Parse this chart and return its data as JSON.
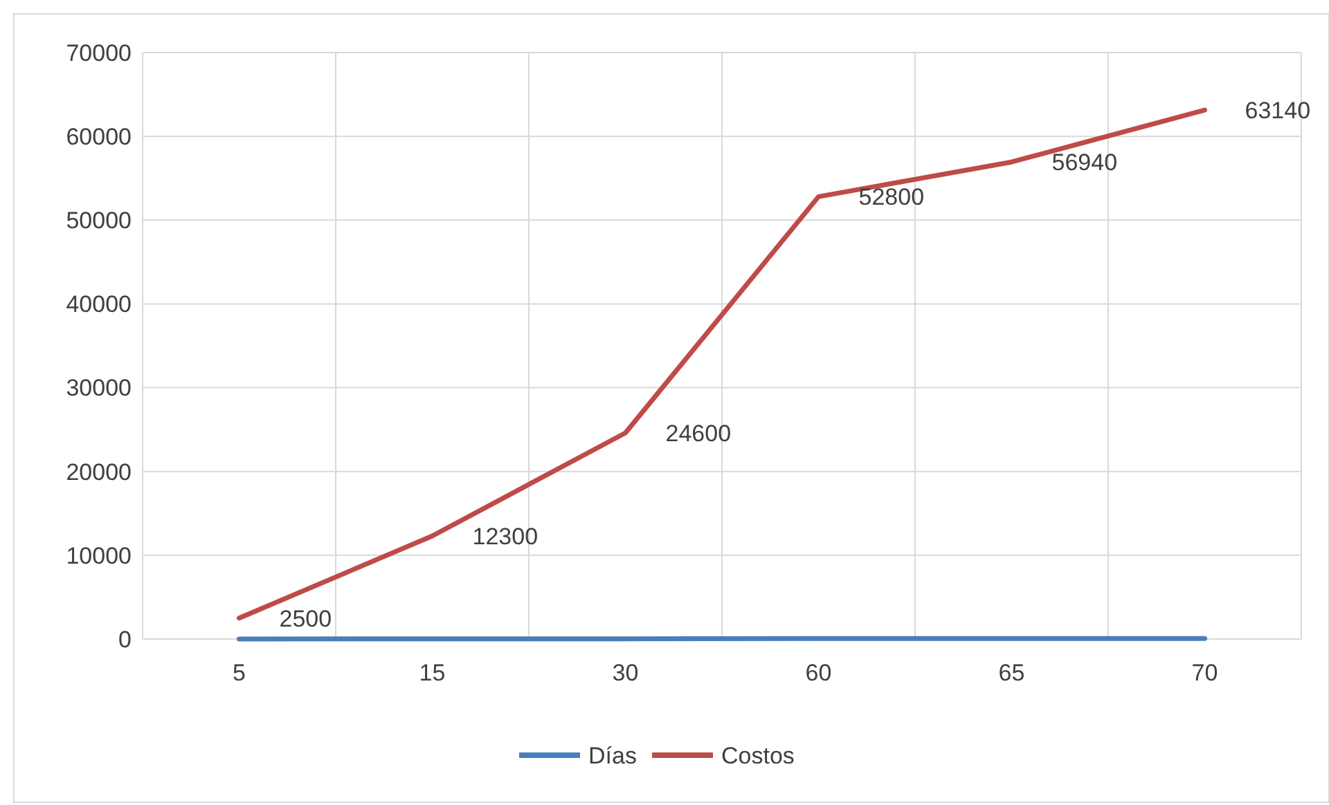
{
  "chart_data": {
    "type": "line",
    "categories": [
      "5",
      "15",
      "30",
      "60",
      "65",
      "70"
    ],
    "series": [
      {
        "name": "Días",
        "color": "#4a7ebb",
        "values": [
          5,
          15,
          30,
          60,
          65,
          70
        ]
      },
      {
        "name": "Costos",
        "color": "#be4b48",
        "values": [
          2500,
          12300,
          24600,
          52800,
          56940,
          63140
        ],
        "value_labels": [
          "2500",
          "12300",
          "24600",
          "52800",
          "56940",
          "63140"
        ]
      }
    ],
    "ylim": [
      0,
      70000
    ],
    "yticks": [
      0,
      10000,
      20000,
      30000,
      40000,
      50000,
      60000,
      70000
    ],
    "grid": true,
    "legend": "bottom",
    "marker": "none",
    "line_style": "solid"
  }
}
